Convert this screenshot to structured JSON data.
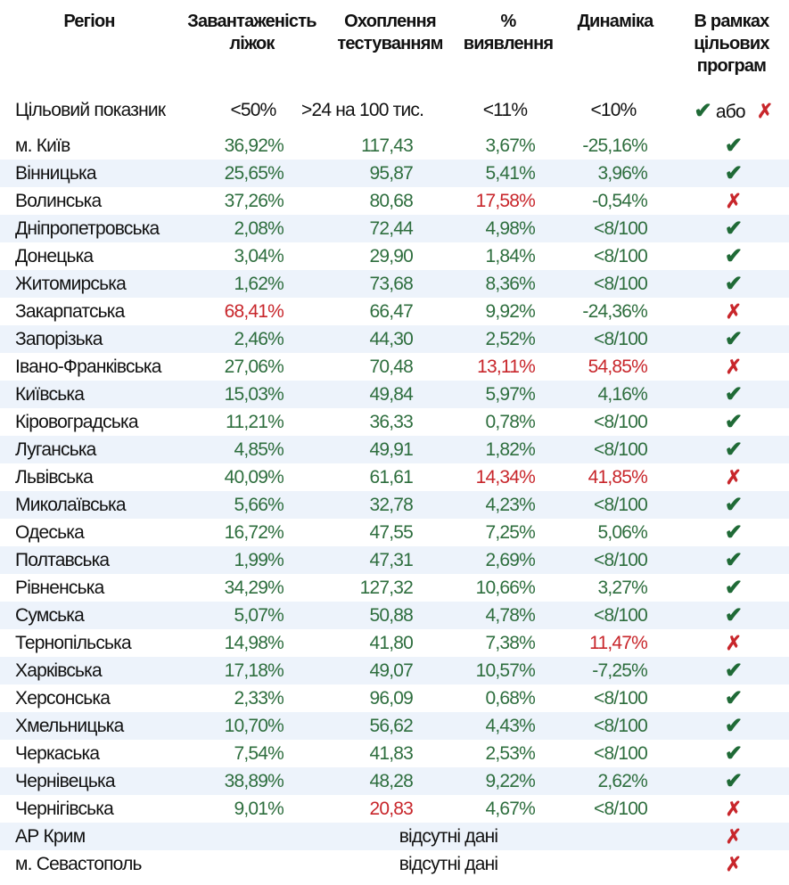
{
  "headers": {
    "region": "Регіон",
    "beds": "Завантаженість ліжок",
    "testing": "Охоплення тестуванням",
    "detection": "% виявлення",
    "dynamics": "Динаміка",
    "programs": "В рамках цільових програм"
  },
  "target": {
    "label": "Цільовий показник",
    "beds": "<50%",
    "testing": ">24 на 100 тис.",
    "detection": "<11%",
    "dynamics": "<10%",
    "or": "або"
  },
  "colors": {
    "good": "#2e6e3e",
    "bad": "#c8262b",
    "stripe": "#edf3fb"
  },
  "rows": [
    {
      "region": "м. Київ",
      "beds": "36,92%",
      "testing": "117,43",
      "detection": "3,67%",
      "dynamics": "-25,16%",
      "ok": true,
      "bad": []
    },
    {
      "region": "Вінницька",
      "beds": "25,65%",
      "testing": "95,87",
      "detection": "5,41%",
      "dynamics": "3,96%",
      "ok": true,
      "bad": []
    },
    {
      "region": "Волинська",
      "beds": "37,26%",
      "testing": "80,68",
      "detection": "17,58%",
      "dynamics": "-0,54%",
      "ok": false,
      "bad": [
        "detection"
      ]
    },
    {
      "region": "Дніпропетровська",
      "beds": "2,08%",
      "testing": "72,44",
      "detection": "4,98%",
      "dynamics": "<8/100",
      "ok": true,
      "bad": []
    },
    {
      "region": "Донецька",
      "beds": "3,04%",
      "testing": "29,90",
      "detection": "1,84%",
      "dynamics": "<8/100",
      "ok": true,
      "bad": []
    },
    {
      "region": "Житомирська",
      "beds": "1,62%",
      "testing": "73,68",
      "detection": "8,36%",
      "dynamics": "<8/100",
      "ok": true,
      "bad": []
    },
    {
      "region": "Закарпатська",
      "beds": "68,41%",
      "testing": "66,47",
      "detection": "9,92%",
      "dynamics": "-24,36%",
      "ok": false,
      "bad": [
        "beds"
      ]
    },
    {
      "region": "Запорізька",
      "beds": "2,46%",
      "testing": "44,30",
      "detection": "2,52%",
      "dynamics": "<8/100",
      "ok": true,
      "bad": []
    },
    {
      "region": "Івано-Франківська",
      "beds": "27,06%",
      "testing": "70,48",
      "detection": "13,11%",
      "dynamics": "54,85%",
      "ok": false,
      "bad": [
        "detection",
        "dynamics"
      ]
    },
    {
      "region": "Київська",
      "beds": "15,03%",
      "testing": "49,84",
      "detection": "5,97%",
      "dynamics": "4,16%",
      "ok": true,
      "bad": []
    },
    {
      "region": "Кіровоградська",
      "beds": "11,21%",
      "testing": "36,33",
      "detection": "0,78%",
      "dynamics": "<8/100",
      "ok": true,
      "bad": []
    },
    {
      "region": "Луганська",
      "beds": "4,85%",
      "testing": "49,91",
      "detection": "1,82%",
      "dynamics": "<8/100",
      "ok": true,
      "bad": []
    },
    {
      "region": "Львівська",
      "beds": "40,09%",
      "testing": "61,61",
      "detection": "14,34%",
      "dynamics": "41,85%",
      "ok": false,
      "bad": [
        "detection",
        "dynamics"
      ]
    },
    {
      "region": "Миколаївська",
      "beds": "5,66%",
      "testing": "32,78",
      "detection": "4,23%",
      "dynamics": "<8/100",
      "ok": true,
      "bad": []
    },
    {
      "region": "Одеська",
      "beds": "16,72%",
      "testing": "47,55",
      "detection": "7,25%",
      "dynamics": "5,06%",
      "ok": true,
      "bad": []
    },
    {
      "region": "Полтавська",
      "beds": "1,99%",
      "testing": "47,31",
      "detection": "2,69%",
      "dynamics": "<8/100",
      "ok": true,
      "bad": []
    },
    {
      "region": "Рівненська",
      "beds": "34,29%",
      "testing": "127,32",
      "detection": "10,66%",
      "dynamics": "3,27%",
      "ok": true,
      "bad": []
    },
    {
      "region": "Сумська",
      "beds": "5,07%",
      "testing": "50,88",
      "detection": "4,78%",
      "dynamics": "<8/100",
      "ok": true,
      "bad": []
    },
    {
      "region": "Тернопільська",
      "beds": "14,98%",
      "testing": "41,80",
      "detection": "7,38%",
      "dynamics": "11,47%",
      "ok": false,
      "bad": [
        "dynamics"
      ]
    },
    {
      "region": "Харківська",
      "beds": "17,18%",
      "testing": "49,07",
      "detection": "10,57%",
      "dynamics": "-7,25%",
      "ok": true,
      "bad": []
    },
    {
      "region": "Херсонська",
      "beds": "2,33%",
      "testing": "96,09",
      "detection": "0,68%",
      "dynamics": "<8/100",
      "ok": true,
      "bad": []
    },
    {
      "region": "Хмельницька",
      "beds": "10,70%",
      "testing": "56,62",
      "detection": "4,43%",
      "dynamics": "<8/100",
      "ok": true,
      "bad": []
    },
    {
      "region": "Черкаська",
      "beds": "7,54%",
      "testing": "41,83",
      "detection": "2,53%",
      "dynamics": "<8/100",
      "ok": true,
      "bad": []
    },
    {
      "region": "Чернівецька",
      "beds": "38,89%",
      "testing": "48,28",
      "detection": "9,22%",
      "dynamics": "2,62%",
      "ok": true,
      "bad": []
    },
    {
      "region": "Чернігівська",
      "beds": "9,01%",
      "testing": "20,83",
      "detection": "4,67%",
      "dynamics": "<8/100",
      "ok": false,
      "bad": [
        "testing"
      ]
    },
    {
      "region": "АР Крим",
      "missing": "відсутні дані",
      "ok": false
    },
    {
      "region": "м. Севастополь",
      "missing": "відсутні дані",
      "ok": false
    }
  ]
}
